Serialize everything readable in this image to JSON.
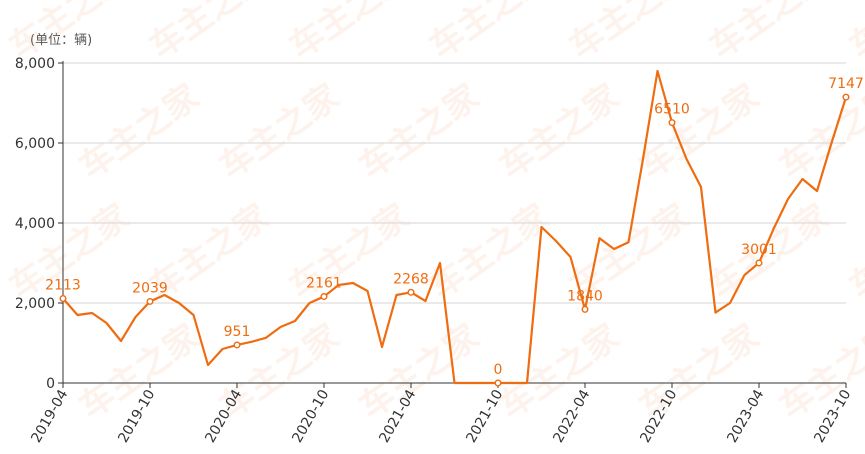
{
  "chart_data": {
    "type": "line",
    "unit_label": "(单位：辆)",
    "ylim": [
      0,
      8000
    ],
    "yticks": [
      "0",
      "2,000",
      "4,000",
      "6,000",
      "8,000"
    ],
    "ytick_values": [
      0,
      2000,
      4000,
      6000,
      8000
    ],
    "xtick_labels": [
      "2019-04",
      "2019-10",
      "2020-04",
      "2020-10",
      "2021-04",
      "2021-10",
      "2022-04",
      "2022-10",
      "2023-04",
      "2023-10"
    ],
    "x": [
      "2019-04",
      "2019-05",
      "2019-06",
      "2019-07",
      "2019-08",
      "2019-09",
      "2019-10",
      "2019-11",
      "2019-12",
      "2020-01",
      "2020-02",
      "2020-03",
      "2020-04",
      "2020-05",
      "2020-06",
      "2020-07",
      "2020-08",
      "2020-09",
      "2020-10",
      "2020-11",
      "2020-12",
      "2021-01",
      "2021-02",
      "2021-03",
      "2021-04",
      "2021-05",
      "2021-06",
      "2021-07",
      "2021-08",
      "2021-09",
      "2021-10",
      "2021-11",
      "2021-12",
      "2022-01",
      "2022-02",
      "2022-03",
      "2022-04",
      "2022-05",
      "2022-06",
      "2022-07",
      "2022-08",
      "2022-09",
      "2022-10",
      "2022-11",
      "2022-12",
      "2023-01",
      "2023-02",
      "2023-03",
      "2023-04",
      "2023-05",
      "2023-06",
      "2023-07",
      "2023-08",
      "2023-09",
      "2023-10"
    ],
    "values": [
      2113,
      1700,
      1750,
      1500,
      1050,
      1650,
      2039,
      2200,
      2000,
      1700,
      450,
      850,
      951,
      1030,
      1130,
      1400,
      1550,
      2000,
      2161,
      2450,
      2500,
      2300,
      900,
      2200,
      2268,
      2050,
      3000,
      0,
      0,
      0,
      0,
      0,
      0,
      3900,
      3550,
      3150,
      1840,
      3620,
      3350,
      3520,
      5600,
      7800,
      6510,
      5600,
      4900,
      1760,
      2000,
      2700,
      3001,
      3850,
      4600,
      5100,
      4800,
      6000,
      7147
    ],
    "data_labels": [
      {
        "x": "2019-04",
        "text": "2113"
      },
      {
        "x": "2019-10",
        "text": "2039"
      },
      {
        "x": "2020-04",
        "text": "951"
      },
      {
        "x": "2020-10",
        "text": "2161"
      },
      {
        "x": "2021-04",
        "text": "2268"
      },
      {
        "x": "2021-10",
        "text": "0"
      },
      {
        "x": "2022-04",
        "text": "1840"
      },
      {
        "x": "2022-10",
        "text": "6510"
      },
      {
        "x": "2023-04",
        "text": "3001"
      },
      {
        "x": "2023-10",
        "text": "7147"
      }
    ],
    "line_color": "#ef6c10",
    "grid": true,
    "title": "",
    "xlabel": "",
    "ylabel": ""
  },
  "watermark": {
    "text": "车主之家"
  }
}
